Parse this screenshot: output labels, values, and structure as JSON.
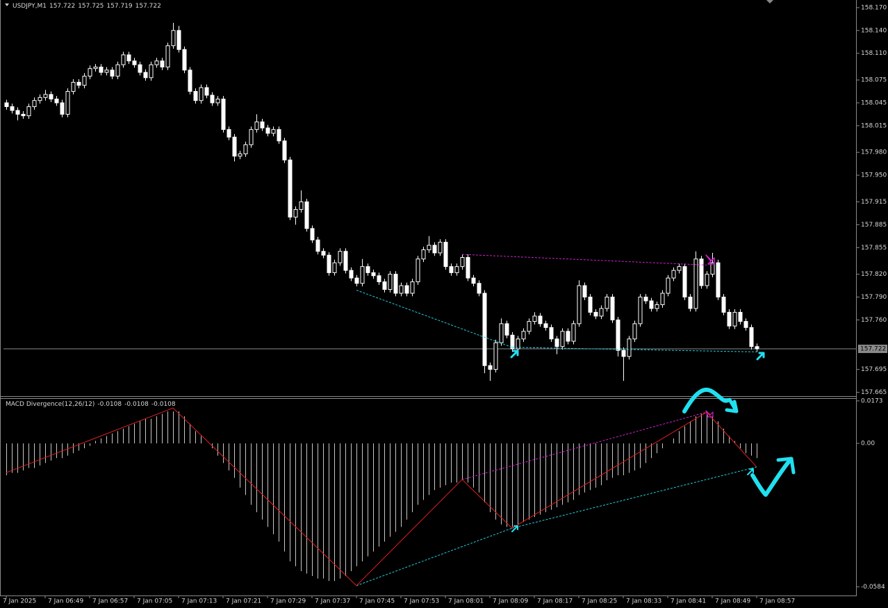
{
  "chart_data": [
    {
      "type": "candlestick",
      "title": "USDJPY,M1",
      "quote": [
        157.722,
        157.725,
        157.719,
        157.722
      ],
      "bull_color": "#000000",
      "bear_color": "#ffffff",
      "wick_color": "#ffffff",
      "ylim": [
        157.66,
        158.18
      ],
      "yticks": [
        {
          "value": 158.17,
          "label": "158.170"
        },
        {
          "value": 158.14,
          "label": "158.140"
        },
        {
          "value": 158.11,
          "label": "158.110"
        },
        158.075,
        158.045,
        158.015,
        {
          "value": 157.98,
          "label": "157.980"
        },
        {
          "value": 157.95,
          "label": "157.950"
        },
        157.915,
        157.885,
        157.855,
        {
          "value": 157.82,
          "label": "157.820"
        },
        {
          "value": 157.79,
          "label": "157.790"
        },
        {
          "value": 157.76,
          "label": "157.760"
        },
        157.695,
        157.665
      ],
      "bid": 157.722,
      "bid_color": "#8a8a8a",
      "ohlc": [
        [
          158.045,
          158.049,
          158.036,
          158.04
        ],
        [
          158.04,
          158.044,
          158.031,
          158.035
        ],
        [
          158.035,
          158.039,
          158.022,
          158.03
        ],
        [
          158.03,
          158.034,
          158.024,
          158.028
        ],
        [
          158.028,
          158.044,
          158.024,
          158.04
        ],
        [
          158.04,
          158.052,
          158.036,
          158.048
        ],
        [
          158.048,
          158.056,
          158.044,
          158.052
        ],
        [
          158.052,
          158.062,
          158.048,
          158.056
        ],
        [
          158.056,
          158.06,
          158.046,
          158.05
        ],
        [
          158.05,
          158.054,
          158.041,
          158.045
        ],
        [
          158.045,
          158.049,
          158.026,
          158.03
        ],
        [
          158.03,
          158.064,
          158.026,
          158.06
        ],
        [
          158.06,
          158.076,
          158.056,
          158.072
        ],
        [
          158.072,
          158.076,
          158.064,
          158.068
        ],
        [
          158.068,
          158.084,
          158.064,
          158.08
        ],
        [
          158.08,
          158.094,
          158.076,
          158.09
        ],
        [
          158.09,
          158.096,
          158.086,
          158.092
        ],
        [
          158.092,
          158.096,
          158.081,
          158.085
        ],
        [
          158.085,
          158.092,
          158.081,
          158.088
        ],
        [
          158.088,
          158.092,
          158.076,
          158.08
        ],
        [
          158.08,
          158.099,
          158.076,
          158.095
        ],
        [
          158.095,
          158.112,
          158.091,
          158.108
        ],
        [
          158.108,
          158.112,
          158.096,
          158.1
        ],
        [
          158.1,
          158.104,
          158.091,
          158.095
        ],
        [
          158.095,
          158.099,
          158.081,
          158.085
        ],
        [
          158.085,
          158.089,
          158.074,
          158.078
        ],
        [
          158.078,
          158.099,
          158.074,
          158.095
        ],
        [
          158.095,
          158.104,
          158.091,
          158.1
        ],
        [
          158.1,
          158.104,
          158.088,
          158.092
        ],
        [
          158.092,
          158.124,
          158.088,
          158.12
        ],
        [
          158.12,
          158.15,
          158.116,
          158.14
        ],
        [
          158.14,
          158.146,
          158.111,
          158.115
        ],
        [
          158.115,
          158.119,
          158.084,
          158.088
        ],
        [
          158.088,
          158.092,
          158.056,
          158.06
        ],
        [
          158.06,
          158.064,
          158.044,
          158.048
        ],
        [
          158.048,
          158.069,
          158.044,
          158.065
        ],
        [
          158.065,
          158.069,
          158.051,
          158.055
        ],
        [
          158.055,
          158.059,
          158.041,
          158.045
        ],
        [
          158.045,
          158.054,
          158.041,
          158.05
        ],
        [
          158.05,
          158.054,
          158.006,
          158.01
        ],
        [
          158.01,
          158.014,
          157.996,
          158.0
        ],
        [
          158.0,
          158.004,
          157.968,
          157.975
        ],
        [
          157.975,
          157.982,
          157.971,
          157.978
        ],
        [
          157.978,
          157.994,
          157.974,
          157.99
        ],
        [
          157.99,
          158.014,
          157.986,
          158.01
        ],
        [
          158.01,
          158.03,
          158.006,
          158.02
        ],
        [
          158.02,
          158.024,
          158.008,
          158.012
        ],
        [
          158.012,
          158.016,
          158.001,
          158.005
        ],
        [
          158.005,
          158.014,
          158.001,
          158.01
        ],
        [
          158.01,
          158.014,
          157.991,
          157.995
        ],
        [
          157.995,
          157.999,
          157.966,
          157.97
        ],
        [
          157.97,
          157.974,
          157.891,
          157.895
        ],
        [
          157.895,
          157.909,
          157.885,
          157.905
        ],
        [
          157.905,
          157.93,
          157.901,
          157.915
        ],
        [
          157.915,
          157.919,
          157.876,
          157.88
        ],
        [
          157.88,
          157.884,
          157.861,
          157.865
        ],
        [
          157.865,
          157.869,
          157.846,
          157.85
        ],
        [
          157.85,
          157.854,
          157.841,
          157.845
        ],
        [
          157.845,
          157.849,
          157.818,
          157.822
        ],
        [
          157.822,
          157.839,
          157.818,
          157.835
        ],
        [
          157.835,
          157.854,
          157.831,
          157.85
        ],
        [
          157.85,
          157.854,
          157.821,
          157.825
        ],
        [
          157.825,
          157.829,
          157.811,
          157.815
        ],
        [
          157.815,
          157.819,
          157.804,
          157.808
        ],
        [
          157.808,
          157.84,
          157.804,
          157.83
        ],
        [
          157.83,
          157.834,
          157.818,
          157.822
        ],
        [
          157.822,
          157.826,
          157.814,
          157.818
        ],
        [
          157.818,
          157.822,
          157.806,
          157.81
        ],
        [
          157.81,
          157.814,
          157.796,
          157.8
        ],
        [
          157.8,
          157.824,
          157.796,
          157.82
        ],
        [
          157.82,
          157.824,
          157.791,
          157.795
        ],
        [
          157.795,
          157.809,
          157.791,
          157.805
        ],
        [
          157.805,
          157.809,
          157.791,
          157.795
        ],
        [
          157.795,
          157.814,
          157.791,
          157.81
        ],
        [
          157.81,
          157.844,
          157.806,
          157.84
        ],
        [
          157.84,
          157.856,
          157.836,
          157.852
        ],
        [
          157.852,
          157.87,
          157.848,
          157.858
        ],
        [
          157.858,
          157.862,
          157.844,
          157.848
        ],
        [
          157.848,
          157.866,
          157.844,
          157.862
        ],
        [
          157.862,
          157.866,
          157.826,
          157.83
        ],
        [
          157.83,
          157.834,
          157.818,
          157.822
        ],
        [
          157.822,
          157.834,
          157.818,
          157.83
        ],
        [
          157.83,
          157.846,
          157.826,
          157.842
        ],
        [
          157.842,
          157.846,
          157.811,
          157.815
        ],
        [
          157.815,
          157.819,
          157.804,
          157.808
        ],
        [
          157.808,
          157.812,
          157.791,
          157.795
        ],
        [
          157.795,
          157.799,
          157.69,
          157.7
        ],
        [
          157.7,
          157.704,
          157.68,
          157.695
        ],
        [
          157.695,
          157.734,
          157.691,
          157.73
        ],
        [
          157.73,
          157.762,
          157.726,
          157.755
        ],
        [
          157.755,
          157.759,
          157.736,
          157.74
        ],
        [
          157.74,
          157.744,
          157.718,
          157.722
        ],
        [
          157.722,
          157.739,
          157.718,
          157.735
        ],
        [
          157.735,
          157.749,
          157.731,
          157.745
        ],
        [
          157.745,
          157.762,
          157.741,
          157.758
        ],
        [
          157.758,
          157.77,
          157.754,
          157.765
        ],
        [
          157.765,
          157.769,
          157.751,
          157.755
        ],
        [
          157.755,
          157.759,
          157.746,
          157.75
        ],
        [
          157.75,
          157.754,
          157.731,
          157.735
        ],
        [
          157.735,
          157.739,
          157.715,
          157.725
        ],
        [
          157.725,
          157.749,
          157.721,
          157.745
        ],
        [
          157.745,
          157.749,
          157.728,
          157.732
        ],
        [
          157.732,
          157.759,
          157.728,
          157.755
        ],
        [
          157.755,
          157.812,
          157.751,
          157.805
        ],
        [
          157.805,
          157.809,
          157.786,
          157.79
        ],
        [
          157.79,
          157.794,
          157.766,
          157.77
        ],
        [
          157.77,
          157.774,
          157.761,
          157.765
        ],
        [
          157.765,
          157.779,
          157.761,
          157.775
        ],
        [
          157.775,
          157.794,
          157.771,
          157.79
        ],
        [
          157.79,
          157.794,
          157.756,
          157.76
        ],
        [
          157.76,
          157.764,
          157.712,
          157.72
        ],
        [
          157.72,
          157.724,
          157.68,
          157.712
        ],
        [
          157.712,
          157.739,
          157.708,
          157.735
        ],
        [
          157.735,
          157.759,
          157.731,
          157.755
        ],
        [
          157.755,
          157.794,
          157.751,
          157.79
        ],
        [
          157.79,
          157.794,
          157.781,
          157.785
        ],
        [
          157.785,
          157.789,
          157.771,
          157.775
        ],
        [
          157.775,
          157.784,
          157.771,
          157.78
        ],
        [
          157.78,
          157.799,
          157.776,
          157.795
        ],
        [
          157.795,
          157.819,
          157.791,
          157.815
        ],
        [
          157.815,
          157.829,
          157.811,
          157.825
        ],
        [
          157.825,
          157.834,
          157.821,
          157.83
        ],
        [
          157.83,
          157.834,
          157.786,
          157.79
        ],
        [
          157.79,
          157.794,
          157.771,
          157.775
        ],
        [
          157.775,
          157.85,
          157.771,
          157.84
        ],
        [
          157.84,
          157.844,
          157.801,
          157.805
        ],
        [
          157.805,
          157.824,
          157.801,
          157.82
        ],
        [
          157.82,
          157.848,
          157.816,
          157.835
        ],
        [
          157.835,
          157.839,
          157.786,
          157.79
        ],
        [
          157.79,
          157.794,
          157.766,
          157.77
        ],
        [
          157.77,
          157.774,
          157.748,
          157.752
        ],
        [
          157.752,
          157.774,
          157.748,
          157.77
        ],
        [
          157.77,
          157.774,
          157.754,
          157.758
        ],
        [
          157.758,
          157.762,
          157.746,
          157.75
        ],
        [
          157.75,
          157.754,
          157.721,
          157.725
        ],
        [
          157.725,
          157.729,
          157.718,
          157.722
        ]
      ],
      "divergences": [
        {
          "x": [
            82,
            126
          ],
          "values": [
            157.846,
            157.832
          ],
          "color": "#d020d0"
        },
        {
          "x": [
            63,
            91
          ],
          "values": [
            157.799,
            157.724
          ],
          "color": "#20d0e0"
        },
        {
          "x": [
            91,
            135
          ],
          "values": [
            157.724,
            157.718
          ],
          "color": "#20d0e0"
        }
      ]
    },
    {
      "type": "histogram",
      "title": "MACD Divergence(12,26/12)",
      "quote": [
        -0.0108,
        -0.0108,
        -0.0108
      ],
      "color": "#c8c8c8",
      "ylim": [
        -0.0619,
        0.0184
      ],
      "yticks": [
        0.0173,
        {
          "value": 0,
          "label": "0.00"
        },
        -0.0584
      ],
      "values": [
        -0.013,
        -0.012,
        -0.012,
        -0.011,
        -0.01,
        -0.01,
        -0.009,
        -0.008,
        -0.007,
        -0.006,
        -0.006,
        -0.005,
        -0.004,
        -0.003,
        -0.002,
        -0.001,
        0.001,
        0.002,
        0.003,
        0.004,
        0.005,
        0.006,
        0.007,
        0.008,
        0.009,
        0.01,
        0.01,
        0.011,
        0.012,
        0.013,
        0.013,
        0.013,
        0.011,
        0.008,
        0.005,
        0.003,
        0.0,
        -0.002,
        -0.005,
        -0.008,
        -0.011,
        -0.014,
        -0.018,
        -0.021,
        -0.025,
        -0.028,
        -0.031,
        -0.034,
        -0.037,
        -0.04,
        -0.044,
        -0.048,
        -0.05,
        -0.052,
        -0.053,
        -0.054,
        -0.055,
        -0.055,
        -0.056,
        -0.056,
        -0.055,
        -0.054,
        -0.052,
        -0.05,
        -0.048,
        -0.046,
        -0.044,
        -0.042,
        -0.04,
        -0.038,
        -0.036,
        -0.034,
        -0.031,
        -0.028,
        -0.025,
        -0.023,
        -0.021,
        -0.019,
        -0.018,
        -0.017,
        -0.016,
        -0.016,
        -0.015,
        -0.016,
        -0.018,
        -0.02,
        -0.024,
        -0.028,
        -0.031,
        -0.033,
        -0.034,
        -0.034,
        -0.033,
        -0.032,
        -0.031,
        -0.03,
        -0.029,
        -0.028,
        -0.027,
        -0.026,
        -0.025,
        -0.024,
        -0.023,
        -0.021,
        -0.02,
        -0.019,
        -0.018,
        -0.017,
        -0.015,
        -0.014,
        -0.013,
        -0.013,
        -0.012,
        -0.011,
        -0.01,
        -0.008,
        -0.006,
        -0.004,
        -0.002,
        0.0,
        0.002,
        0.005,
        0.007,
        0.009,
        0.011,
        0.012,
        0.012,
        0.011,
        0.009,
        0.006,
        0.003,
        0.001,
        -0.002,
        -0.004,
        -0.005,
        -0.006
      ],
      "zigzag": {
        "x": [
          0,
          30,
          63,
          82,
          91,
          126,
          135
        ],
        "values": [
          -0.0119,
          0.0144,
          -0.0579,
          -0.0147,
          -0.0345,
          0.0127,
          -0.0096
        ],
        "color": "#e02020"
      },
      "divergences": [
        {
          "x": [
            82,
            126
          ],
          "values": [
            -0.0147,
            0.0127
          ],
          "color": "#d020d0"
        },
        {
          "x": [
            63,
            91
          ],
          "values": [
            -0.0579,
            -0.0345
          ],
          "color": "#20d0e0"
        },
        {
          "x": [
            91,
            135
          ],
          "values": [
            -0.0345,
            -0.0096
          ],
          "color": "#20d0e0"
        }
      ],
      "xticks": [
        {
          "value": 0,
          "label": "7 Jan 2025"
        },
        {
          "value": 7,
          "label": "7 Jan 06:49"
        },
        {
          "value": 15,
          "label": "7 Jan 06:57"
        },
        {
          "value": 23,
          "label": "7 Jan 07:05"
        },
        {
          "value": 31,
          "label": "7 Jan 07:13"
        },
        {
          "value": 39,
          "label": "7 Jan 07:21"
        },
        {
          "value": 47,
          "label": "7 Jan 07:29"
        },
        {
          "value": 55,
          "label": "7 Jan 07:37"
        },
        {
          "value": 63,
          "label": "7 Jan 07:45"
        },
        {
          "value": 71,
          "label": "7 Jan 07:53"
        },
        {
          "value": 79,
          "label": "7 Jan 08:01"
        },
        {
          "value": 87,
          "label": "7 Jan 08:09"
        },
        {
          "value": 95,
          "label": "7 Jan 08:17"
        },
        {
          "value": 103,
          "label": "7 Jan 08:25"
        },
        {
          "value": 111,
          "label": "7 Jan 08:33"
        },
        {
          "value": 119,
          "label": "7 Jan 08:41"
        },
        {
          "value": 127,
          "label": "7 Jan 08:49"
        },
        {
          "value": 135,
          "label": "7 Jan 08:57"
        }
      ]
    }
  ]
}
